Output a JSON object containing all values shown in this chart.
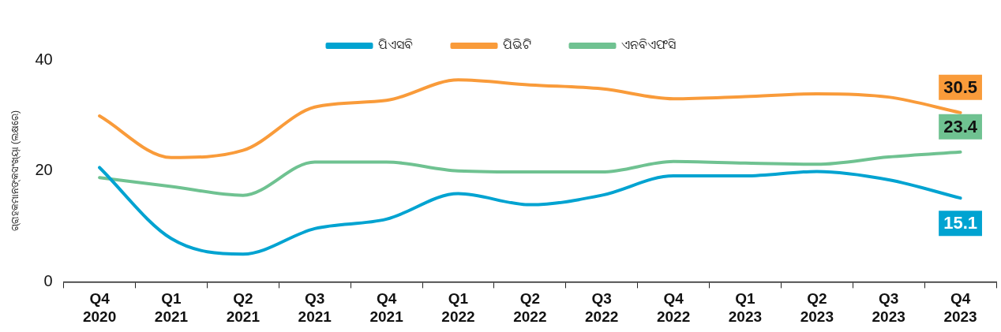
{
  "chart_data": {
    "type": "line",
    "ylabel": "ଗ୍ରାହକମାନଙ୍କସଂଖ୍ୟା (ଲକ୍ଷରେ)",
    "categories": [
      "Q4 2020",
      "Q1 2021",
      "Q2 2021",
      "Q3 2021",
      "Q4 2021",
      "Q1 2022",
      "Q2 2022",
      "Q3 2022",
      "Q4 2022",
      "Q1 2023",
      "Q2 2023",
      "Q3 2023",
      "Q4 2023"
    ],
    "series": [
      {
        "name": "ପିଏସବି",
        "color": "#00a3d1",
        "values": [
          20.6,
          7.8,
          5.0,
          9.6,
          11.3,
          15.9,
          13.9,
          15.6,
          19.1,
          19.1,
          19.9,
          18.4,
          15.1
        ],
        "value_labels": [
          null,
          null,
          null,
          null,
          null,
          null,
          null,
          null,
          null,
          null,
          null,
          null,
          "15.1"
        ]
      },
      {
        "name": "ପିଭିଟି",
        "color": "#f99b3a",
        "values": [
          29.9,
          22.4,
          23.7,
          31.5,
          32.7,
          36.4,
          35.5,
          34.8,
          33.0,
          33.4,
          33.9,
          33.3,
          30.5
        ],
        "value_labels": [
          null,
          null,
          null,
          null,
          null,
          null,
          null,
          null,
          null,
          null,
          null,
          null,
          "30.5"
        ]
      },
      {
        "name": "ଏନବିଏଫସି",
        "color": "#6fc291",
        "values": [
          18.8,
          17.2,
          15.6,
          21.6,
          21.6,
          20.0,
          19.8,
          19.8,
          21.7,
          21.4,
          21.2,
          22.5,
          23.4
        ],
        "value_labels": [
          null,
          null,
          null,
          null,
          null,
          null,
          null,
          null,
          null,
          null,
          null,
          null,
          "23.4"
        ]
      }
    ],
    "ylim": [
      0,
      40
    ],
    "yticks": [
      0,
      20,
      40
    ],
    "grid": false,
    "legend": "top",
    "marker": "none",
    "line_style": "solid"
  }
}
